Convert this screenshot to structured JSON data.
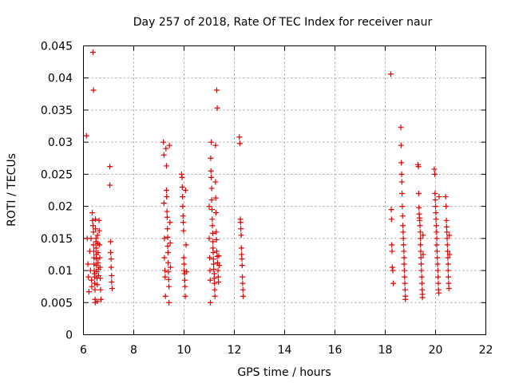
{
  "chart_data": {
    "type": "scatter",
    "title": "Day 257 of 2018, Rate Of TEC Index for receiver naur",
    "xlabel": "GPS time / hours",
    "ylabel": "ROTI / TECUs",
    "xlim": [
      6,
      22
    ],
    "ylim": [
      0,
      0.045
    ],
    "xticks": [
      "6",
      "8",
      "10",
      "12",
      "14",
      "16",
      "18",
      "20",
      "22"
    ],
    "yticks": [
      "0",
      "0.005",
      "0.01",
      "0.015",
      "0.02",
      "0.025",
      "0.03",
      "0.035",
      "0.04",
      "0.045"
    ],
    "grid": true,
    "marker": "+",
    "marker_color": "#e00000",
    "series": [
      {
        "name": "ROTI",
        "points": [
          [
            6.12,
            0.031
          ],
          [
            6.15,
            0.015
          ],
          [
            6.18,
            0.011
          ],
          [
            6.2,
            0.009
          ],
          [
            6.22,
            0.0067
          ],
          [
            6.25,
            0.013
          ],
          [
            6.28,
            0.01
          ],
          [
            6.3,
            0.015
          ],
          [
            6.32,
            0.0085
          ],
          [
            6.33,
            0.0075
          ],
          [
            6.35,
            0.019
          ],
          [
            6.36,
            0.0178
          ],
          [
            6.38,
            0.017
          ],
          [
            6.38,
            0.044
          ],
          [
            6.4,
            0.0381
          ],
          [
            6.4,
            0.016
          ],
          [
            6.4,
            0.014
          ],
          [
            6.41,
            0.013
          ],
          [
            6.42,
            0.012
          ],
          [
            6.42,
            0.011
          ],
          [
            6.43,
            0.01
          ],
          [
            6.44,
            0.0095
          ],
          [
            6.45,
            0.009
          ],
          [
            6.45,
            0.008
          ],
          [
            6.46,
            0.007
          ],
          [
            6.46,
            0.0055
          ],
          [
            6.47,
            0.005
          ],
          [
            6.48,
            0.018
          ],
          [
            6.48,
            0.0165
          ],
          [
            6.5,
            0.015
          ],
          [
            6.5,
            0.0145
          ],
          [
            6.5,
            0.0135
          ],
          [
            6.51,
            0.0125
          ],
          [
            6.52,
            0.0118
          ],
          [
            6.52,
            0.0108
          ],
          [
            6.53,
            0.0098
          ],
          [
            6.54,
            0.0088
          ],
          [
            6.55,
            0.0078
          ],
          [
            6.55,
            0.0052
          ],
          [
            6.56,
            0.0155
          ],
          [
            6.57,
            0.0142
          ],
          [
            6.58,
            0.0128
          ],
          [
            6.58,
            0.0112
          ],
          [
            6.6,
            0.0102
          ],
          [
            6.6,
            0.0092
          ],
          [
            6.62,
            0.0178
          ],
          [
            6.63,
            0.0162
          ],
          [
            6.64,
            0.014
          ],
          [
            6.65,
            0.012
          ],
          [
            6.66,
            0.0105
          ],
          [
            6.67,
            0.0088
          ],
          [
            6.68,
            0.007
          ],
          [
            6.7,
            0.0055
          ],
          [
            7.05,
            0.0262
          ],
          [
            7.05,
            0.0233
          ],
          [
            7.08,
            0.0145
          ],
          [
            7.08,
            0.0128
          ],
          [
            7.1,
            0.0118
          ],
          [
            7.1,
            0.0105
          ],
          [
            7.12,
            0.0092
          ],
          [
            7.12,
            0.0082
          ],
          [
            7.14,
            0.0072
          ],
          [
            9.18,
            0.03
          ],
          [
            9.2,
            0.028
          ],
          [
            9.2,
            0.0205
          ],
          [
            9.22,
            0.015
          ],
          [
            9.22,
            0.012
          ],
          [
            9.24,
            0.01
          ],
          [
            9.25,
            0.009
          ],
          [
            9.26,
            0.006
          ],
          [
            9.28,
            0.029
          ],
          [
            9.3,
            0.0263
          ],
          [
            9.3,
            0.0225
          ],
          [
            9.31,
            0.0215
          ],
          [
            9.32,
            0.0192
          ],
          [
            9.33,
            0.0183
          ],
          [
            9.34,
            0.0165
          ],
          [
            9.35,
            0.0152
          ],
          [
            9.35,
            0.0138
          ],
          [
            9.36,
            0.0128
          ],
          [
            9.37,
            0.0112
          ],
          [
            9.38,
            0.0098
          ],
          [
            9.39,
            0.0086
          ],
          [
            9.4,
            0.0075
          ],
          [
            9.4,
            0.005
          ],
          [
            9.42,
            0.0295
          ],
          [
            9.44,
            0.0175
          ],
          [
            9.45,
            0.0143
          ],
          [
            9.46,
            0.0105
          ],
          [
            9.9,
            0.025
          ],
          [
            9.92,
            0.0245
          ],
          [
            9.93,
            0.023
          ],
          [
            9.94,
            0.0215
          ],
          [
            9.95,
            0.02
          ],
          [
            9.96,
            0.0185
          ],
          [
            9.97,
            0.0175
          ],
          [
            9.98,
            0.0162
          ],
          [
            9.99,
            0.012
          ],
          [
            10.0,
            0.011
          ],
          [
            10.0,
            0.01
          ],
          [
            10.02,
            0.0095
          ],
          [
            10.03,
            0.0085
          ],
          [
            10.04,
            0.0075
          ],
          [
            10.05,
            0.006
          ],
          [
            10.06,
            0.0225
          ],
          [
            10.08,
            0.014
          ],
          [
            10.1,
            0.0098
          ],
          [
            11.0,
            0.02
          ],
          [
            11.0,
            0.015
          ],
          [
            11.02,
            0.012
          ],
          [
            11.03,
            0.01
          ],
          [
            11.04,
            0.0085
          ],
          [
            11.05,
            0.005
          ],
          [
            11.06,
            0.0275
          ],
          [
            11.07,
            0.0255
          ],
          [
            11.08,
            0.03
          ],
          [
            11.08,
            0.0245
          ],
          [
            11.1,
            0.0228
          ],
          [
            11.1,
            0.021
          ],
          [
            11.11,
            0.0195
          ],
          [
            11.12,
            0.018
          ],
          [
            11.13,
            0.017
          ],
          [
            11.14,
            0.0158
          ],
          [
            11.15,
            0.0145
          ],
          [
            11.15,
            0.0135
          ],
          [
            11.16,
            0.0128
          ],
          [
            11.17,
            0.0118
          ],
          [
            11.18,
            0.011
          ],
          [
            11.18,
            0.0102
          ],
          [
            11.2,
            0.0095
          ],
          [
            11.2,
            0.0088
          ],
          [
            11.21,
            0.008
          ],
          [
            11.22,
            0.007
          ],
          [
            11.23,
            0.006
          ],
          [
            11.25,
            0.0295
          ],
          [
            11.25,
            0.0238
          ],
          [
            11.26,
            0.0213
          ],
          [
            11.27,
            0.019
          ],
          [
            11.28,
            0.016
          ],
          [
            11.29,
            0.0148
          ],
          [
            11.3,
            0.013
          ],
          [
            11.3,
            0.0381
          ],
          [
            11.32,
            0.0353
          ],
          [
            11.32,
            0.0122
          ],
          [
            11.33,
            0.0112
          ],
          [
            11.35,
            0.01
          ],
          [
            11.36,
            0.009
          ],
          [
            11.37,
            0.0082
          ],
          [
            11.38,
            0.0123
          ],
          [
            11.4,
            0.0108
          ],
          [
            12.2,
            0.0308
          ],
          [
            12.22,
            0.0298
          ],
          [
            12.24,
            0.018
          ],
          [
            12.25,
            0.0175
          ],
          [
            12.26,
            0.0165
          ],
          [
            12.27,
            0.0155
          ],
          [
            12.28,
            0.0135
          ],
          [
            12.29,
            0.0125
          ],
          [
            12.3,
            0.0118
          ],
          [
            12.31,
            0.0108
          ],
          [
            12.32,
            0.009
          ],
          [
            12.33,
            0.008
          ],
          [
            12.34,
            0.007
          ],
          [
            12.35,
            0.006
          ],
          [
            18.22,
            0.0406
          ],
          [
            18.24,
            0.0195
          ],
          [
            18.25,
            0.018
          ],
          [
            18.26,
            0.014
          ],
          [
            18.27,
            0.013
          ],
          [
            18.28,
            0.0105
          ],
          [
            18.3,
            0.01
          ],
          [
            18.32,
            0.008
          ],
          [
            18.62,
            0.0323
          ],
          [
            18.63,
            0.0295
          ],
          [
            18.64,
            0.0268
          ],
          [
            18.65,
            0.025
          ],
          [
            18.66,
            0.0238
          ],
          [
            18.67,
            0.022
          ],
          [
            18.68,
            0.02
          ],
          [
            18.69,
            0.0185
          ],
          [
            18.7,
            0.017
          ],
          [
            18.71,
            0.016
          ],
          [
            18.72,
            0.015
          ],
          [
            18.73,
            0.014
          ],
          [
            18.74,
            0.013
          ],
          [
            18.75,
            0.012
          ],
          [
            18.75,
            0.011
          ],
          [
            18.76,
            0.01
          ],
          [
            18.77,
            0.009
          ],
          [
            18.78,
            0.008
          ],
          [
            18.79,
            0.007
          ],
          [
            18.8,
            0.006
          ],
          [
            18.8,
            0.0055
          ],
          [
            19.3,
            0.0265
          ],
          [
            19.32,
            0.0262
          ],
          [
            19.33,
            0.022
          ],
          [
            19.34,
            0.0198
          ],
          [
            19.35,
            0.0188
          ],
          [
            19.36,
            0.0182
          ],
          [
            19.37,
            0.0178
          ],
          [
            19.38,
            0.017
          ],
          [
            19.39,
            0.016
          ],
          [
            19.4,
            0.015
          ],
          [
            19.4,
            0.014
          ],
          [
            19.41,
            0.013
          ],
          [
            19.42,
            0.012
          ],
          [
            19.43,
            0.011
          ],
          [
            19.44,
            0.01
          ],
          [
            19.45,
            0.009
          ],
          [
            19.46,
            0.008
          ],
          [
            19.47,
            0.007
          ],
          [
            19.48,
            0.0063
          ],
          [
            19.48,
            0.0058
          ],
          [
            19.5,
            0.0155
          ],
          [
            19.51,
            0.0125
          ],
          [
            19.95,
            0.0258
          ],
          [
            19.97,
            0.025
          ],
          [
            19.98,
            0.022
          ],
          [
            19.99,
            0.021
          ],
          [
            20.0,
            0.02
          ],
          [
            20.01,
            0.019
          ],
          [
            20.02,
            0.018
          ],
          [
            20.03,
            0.017
          ],
          [
            20.04,
            0.016
          ],
          [
            20.05,
            0.015
          ],
          [
            20.05,
            0.014
          ],
          [
            20.06,
            0.013
          ],
          [
            20.07,
            0.012
          ],
          [
            20.08,
            0.011
          ],
          [
            20.09,
            0.01
          ],
          [
            20.1,
            0.009
          ],
          [
            20.11,
            0.008
          ],
          [
            20.12,
            0.007
          ],
          [
            20.13,
            0.0065
          ],
          [
            20.14,
            0.0215
          ],
          [
            20.4,
            0.0215
          ],
          [
            20.42,
            0.02
          ],
          [
            20.43,
            0.0178
          ],
          [
            20.44,
            0.0168
          ],
          [
            20.45,
            0.016
          ],
          [
            20.46,
            0.015
          ],
          [
            20.47,
            0.014
          ],
          [
            20.48,
            0.013
          ],
          [
            20.49,
            0.012
          ],
          [
            20.5,
            0.011
          ],
          [
            20.5,
            0.01
          ],
          [
            20.51,
            0.009
          ],
          [
            20.52,
            0.008
          ],
          [
            20.53,
            0.0072
          ],
          [
            20.55,
            0.0155
          ],
          [
            20.56,
            0.0125
          ]
        ]
      }
    ]
  }
}
